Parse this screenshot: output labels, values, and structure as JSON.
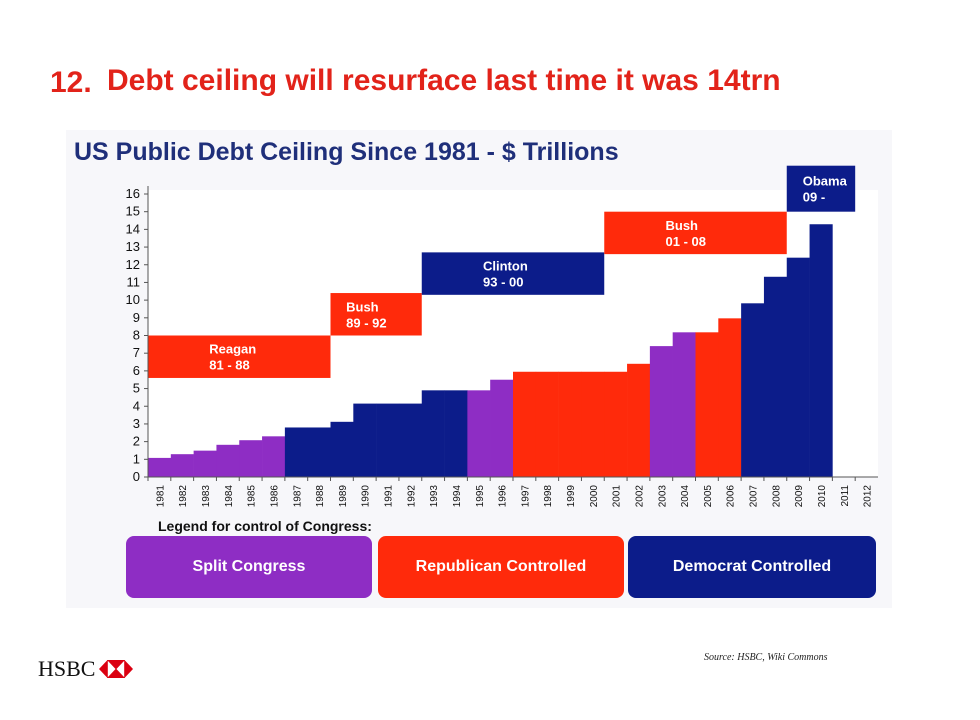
{
  "slide": {
    "number": "12.",
    "title": "Debt ceiling will resurface last time it was 14trn",
    "source": "Source: HSBC, Wiki Commons",
    "logo_text": "HSBC"
  },
  "colors": {
    "title_red": "#e2231a",
    "split": "#8e2dc4",
    "republican": "#ff2a0b",
    "democrat": "#0c1c8a",
    "chart_title": "#1f2f7a"
  },
  "chart_data": {
    "type": "bar",
    "title": "US Public Debt Ceiling Since 1981 - $ Trillions",
    "xlabel": "",
    "ylabel": "",
    "ylim": [
      0,
      16
    ],
    "yticks": [
      0,
      1,
      2,
      3,
      4,
      5,
      6,
      7,
      8,
      9,
      10,
      11,
      12,
      13,
      14,
      15,
      16
    ],
    "grid": false,
    "categories": [
      "1981",
      "1982",
      "1983",
      "1984",
      "1985",
      "1986",
      "1987",
      "1988",
      "1989",
      "1990",
      "1991",
      "1992",
      "1993",
      "1994",
      "1995",
      "1996",
      "1997",
      "1998",
      "1999",
      "2000",
      "2001",
      "2002",
      "2003",
      "2004",
      "2005",
      "2006",
      "2007",
      "2008",
      "2009",
      "2010",
      "2011",
      "2012"
    ],
    "values": [
      1.08,
      1.29,
      1.49,
      1.82,
      2.08,
      2.3,
      2.8,
      2.8,
      3.12,
      4.15,
      4.15,
      4.15,
      4.9,
      4.9,
      4.9,
      5.5,
      5.95,
      5.95,
      5.95,
      5.95,
      5.95,
      6.4,
      7.4,
      8.18,
      8.18,
      8.97,
      9.82,
      11.32,
      12.4,
      14.29,
      null,
      null
    ],
    "control": [
      "split",
      "split",
      "split",
      "split",
      "split",
      "split",
      "democrat",
      "democrat",
      "democrat",
      "democrat",
      "democrat",
      "democrat",
      "democrat",
      "democrat",
      "split",
      "split",
      "republican",
      "republican",
      "republican",
      "republican",
      "republican",
      "republican",
      "split",
      "split",
      "republican",
      "republican",
      "democrat",
      "democrat",
      "democrat",
      "democrat",
      null,
      null
    ],
    "presidencies": [
      {
        "name": "Reagan",
        "years": "81 - 88",
        "party": "republican",
        "from": "1981",
        "to": "1988",
        "ymin": 5.6,
        "ymax": 8.0
      },
      {
        "name": "Bush",
        "years": "89 - 92",
        "party": "republican",
        "from": "1989",
        "to": "1992",
        "ymin": 8.0,
        "ymax": 10.4
      },
      {
        "name": "Clinton",
        "years": "93 - 00",
        "party": "democrat",
        "from": "1993",
        "to": "2000",
        "ymin": 10.3,
        "ymax": 12.7
      },
      {
        "name": "Bush",
        "years": "01 - 08",
        "party": "republican",
        "from": "2001",
        "to": "2008",
        "ymin": 12.6,
        "ymax": 15.0
      },
      {
        "name": "Obama",
        "years": "09 -",
        "party": "democrat",
        "from": "2009",
        "to": "2011",
        "ymin": 15.0,
        "ymax": 17.6
      }
    ],
    "legend": {
      "title": "Legend for control of Congress:",
      "items": [
        {
          "key": "split",
          "label": "Split Congress"
        },
        {
          "key": "republican",
          "label": "Republican Controlled"
        },
        {
          "key": "democrat",
          "label": "Democrat Controlled"
        }
      ]
    }
  }
}
